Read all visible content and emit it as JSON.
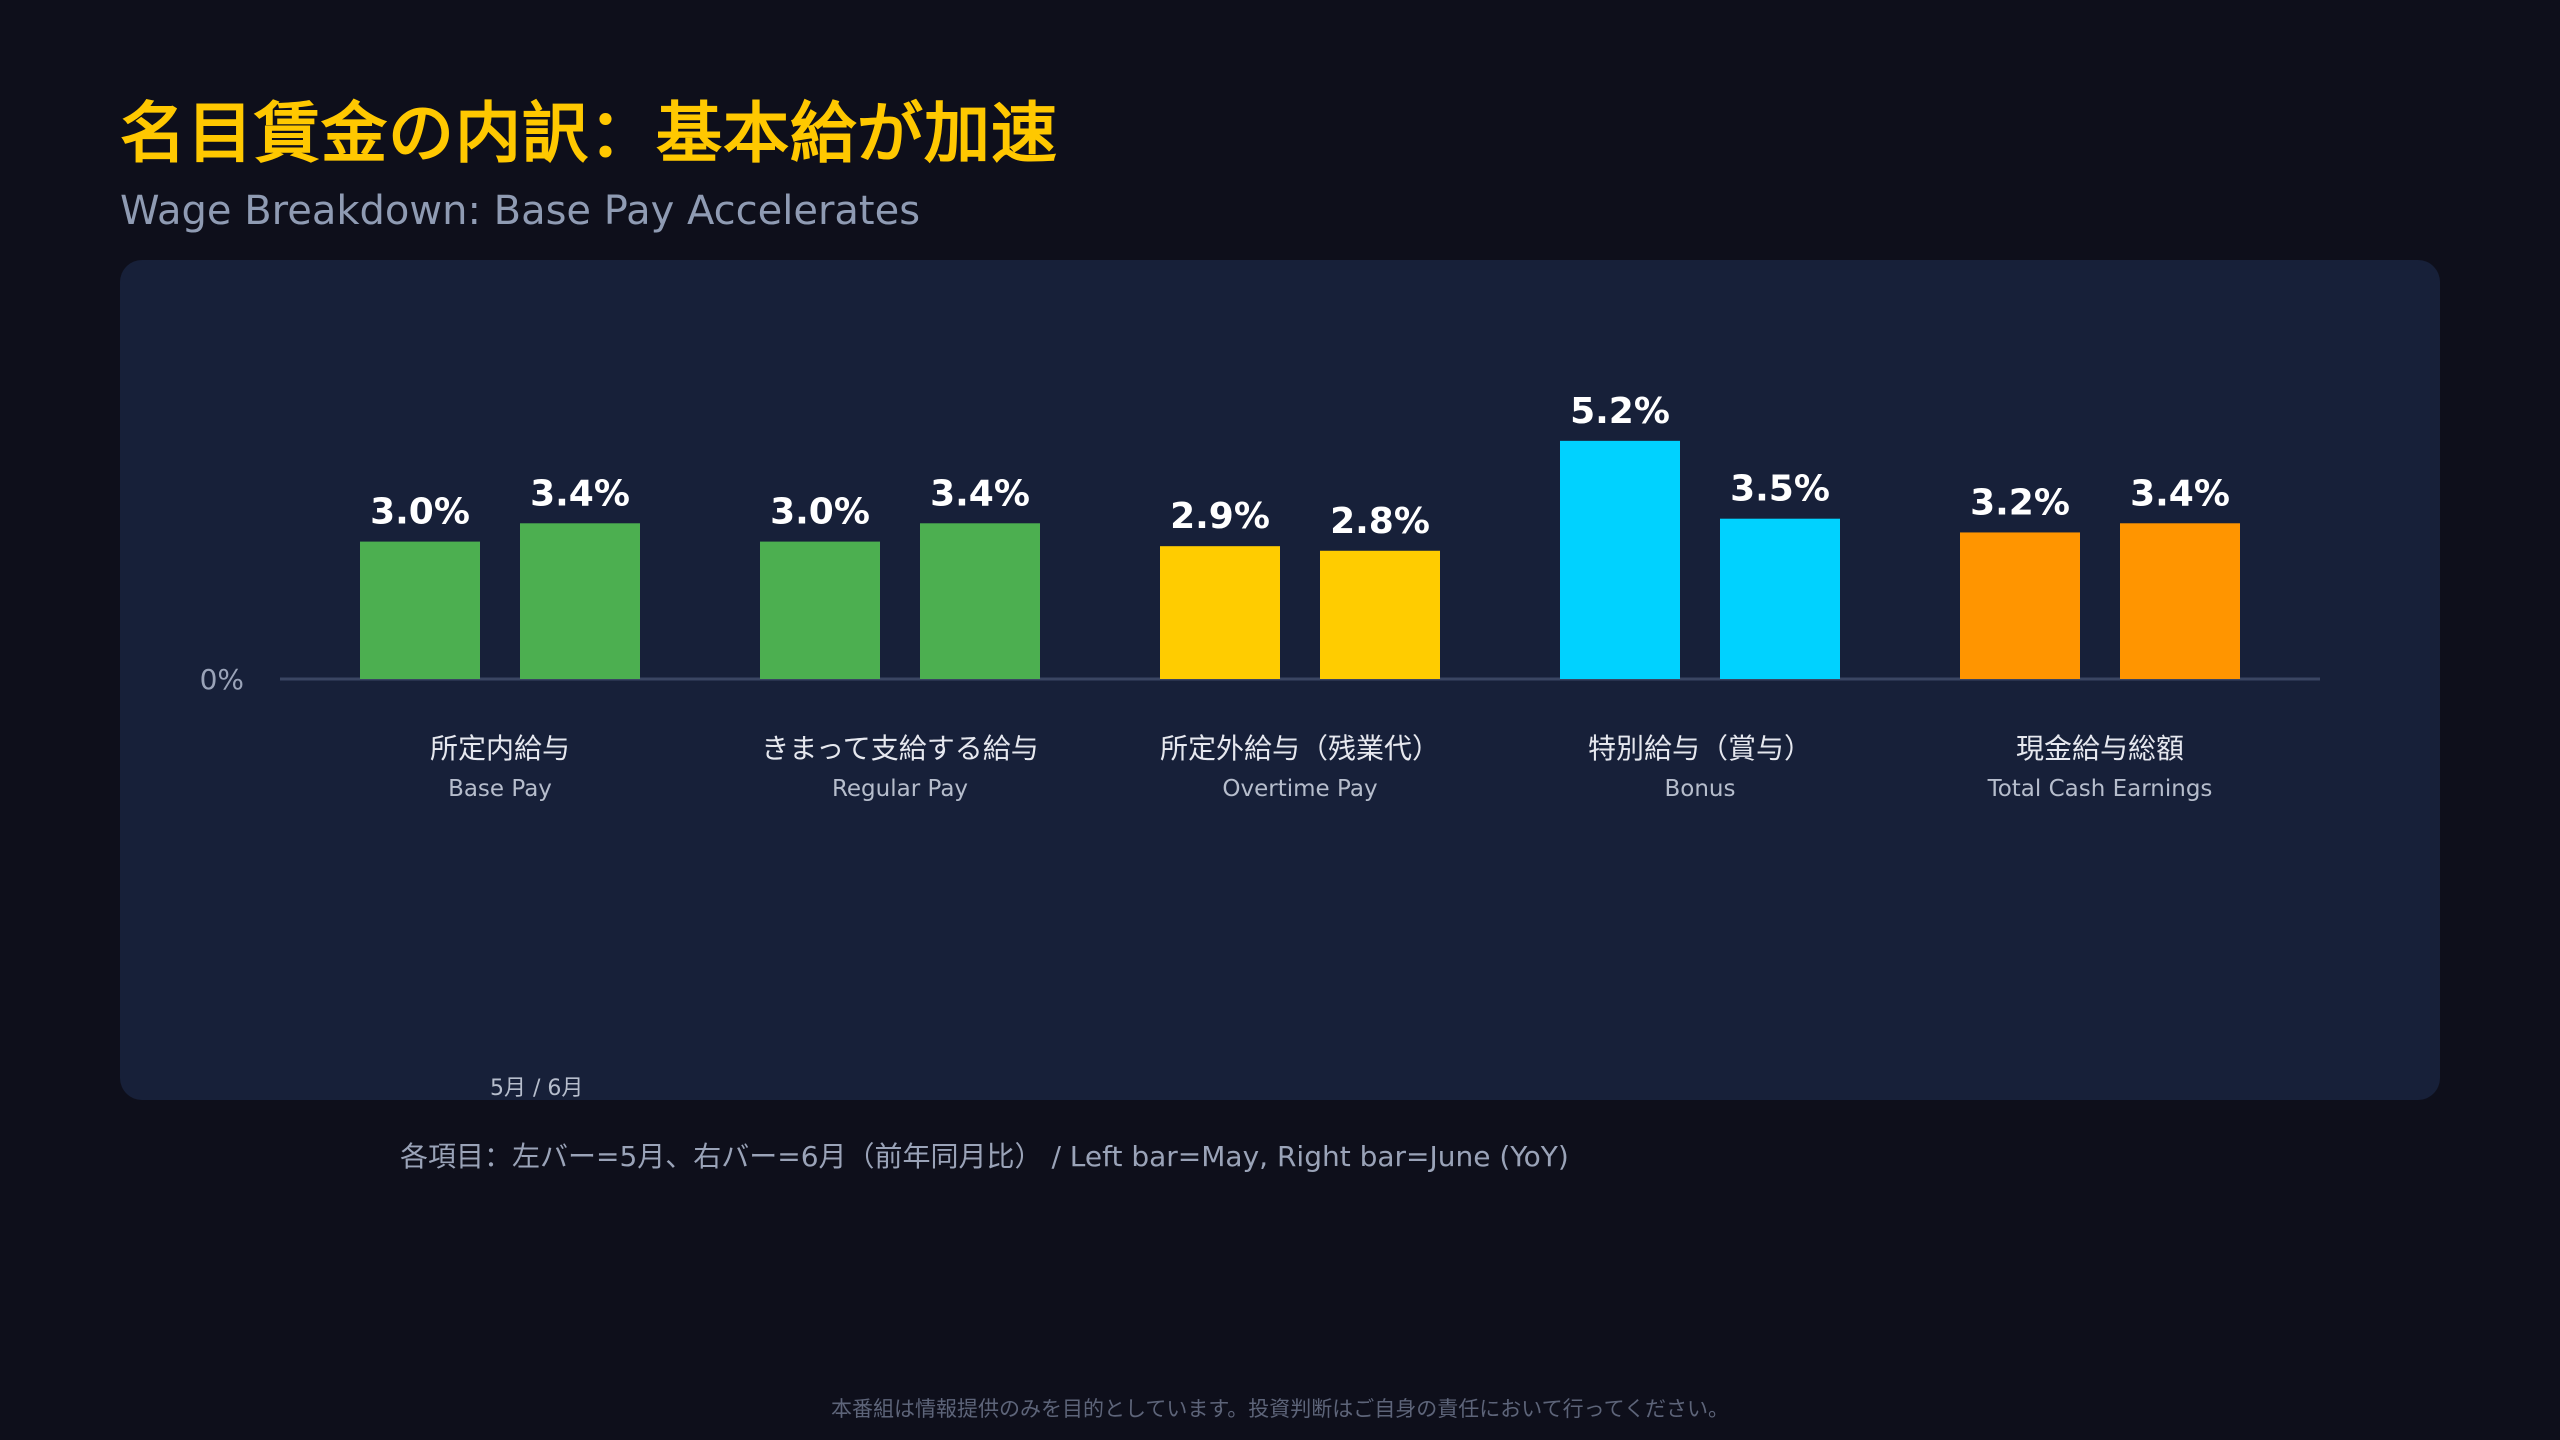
{
  "header": {
    "title": "名目賃金の内訳：基本給が加速",
    "subtitle": "Wage Breakdown: Base Pay Accelerates"
  },
  "chart_data": {
    "type": "bar",
    "zero_label": "0%",
    "categories": [
      {
        "jp": "所定内給与",
        "en": "Base Pay",
        "color": "#4caf50"
      },
      {
        "jp": "きまって支給する給与",
        "en": "Regular Pay",
        "color": "#4caf50"
      },
      {
        "jp": "所定外給与（残業代）",
        "en": "Overtime Pay",
        "color": "#ffcc00"
      },
      {
        "jp": "特別給与（賞与）",
        "en": "Bonus",
        "color": "#00d2ff"
      },
      {
        "jp": "現金給与総額",
        "en": "Total Cash Earnings",
        "color": "#ff9500"
      }
    ],
    "series": [
      {
        "values": [
          3.0,
          3.0,
          2.9,
          5.2,
          3.2
        ],
        "labels": [
          "3.0%",
          "3.0%",
          "2.9%",
          "5.2%",
          "3.2%"
        ]
      },
      {
        "values": [
          3.4,
          3.4,
          2.8,
          3.5,
          3.4
        ],
        "labels": [
          "3.4%",
          "3.4%",
          "2.8%",
          "3.5%",
          "3.4%"
        ]
      }
    ],
    "month_note": "5月 / 6月",
    "legend_note": "各項目：左バー=5月、右バー=6月（前年同月比） / Left bar=May, Right bar=June (YoY)"
  },
  "footer": {
    "disclaimer": "本番組は情報提供のみを目的としています。投資判断はご自身の責任において行ってください。"
  }
}
